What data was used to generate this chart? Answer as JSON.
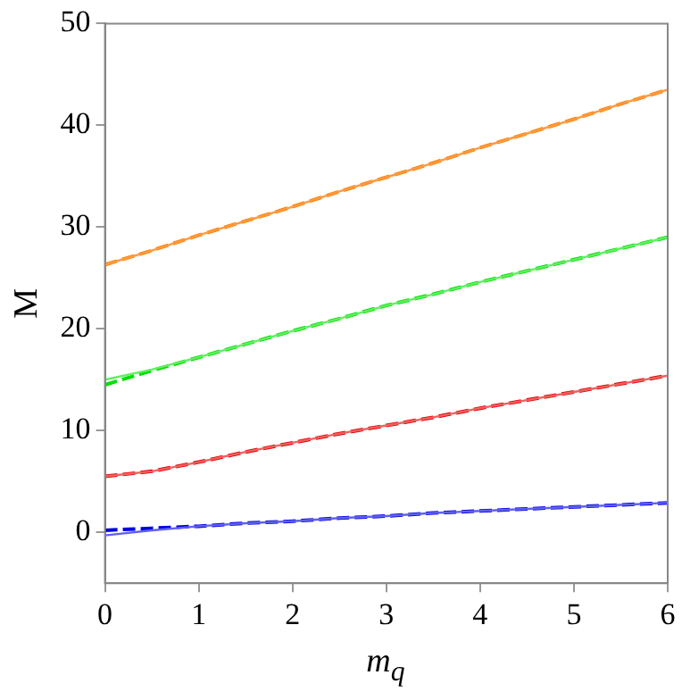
{
  "chart_data": {
    "type": "line",
    "xlabel": "m$_{q}$",
    "ylabel": "M",
    "x": [
      0,
      0.5,
      1,
      1.5,
      2,
      2.5,
      3,
      3.5,
      4,
      4.5,
      5,
      5.5,
      6
    ],
    "xlim": [
      0,
      6
    ],
    "xticks": [
      0,
      1,
      2,
      3,
      4,
      5,
      6
    ],
    "ylim": [
      -5,
      50
    ],
    "yticks": [
      0,
      10,
      20,
      30,
      40,
      50
    ],
    "grid": false,
    "legend": false,
    "marker": "none",
    "series": [
      {
        "color": "#ff9a40",
        "line_style": "solid",
        "values": [
          26.3,
          27.7,
          29.2,
          30.6,
          32.0,
          33.5,
          34.9,
          36.3,
          37.8,
          39.2,
          40.6,
          42.1,
          43.5
        ]
      },
      {
        "color": "#60f060",
        "line_style": "solid",
        "values": [
          15.0,
          16.0,
          17.2,
          18.5,
          19.8,
          21.0,
          22.3,
          23.4,
          24.6,
          25.7,
          26.8,
          27.9,
          29.0
        ]
      },
      {
        "color": "#f06060",
        "line_style": "solid",
        "values": [
          5.5,
          6.0,
          6.9,
          7.9,
          8.8,
          9.7,
          10.5,
          11.3,
          12.2,
          13.0,
          13.8,
          14.6,
          15.4
        ]
      },
      {
        "color": "#6060f0",
        "line_style": "solid",
        "values": [
          -0.3,
          0.2,
          0.6,
          0.9,
          1.1,
          1.4,
          1.6,
          1.9,
          2.1,
          2.3,
          2.5,
          2.7,
          2.9
        ]
      },
      {
        "color": "#ff8000",
        "line_style": "dashed",
        "values": [
          26.3,
          27.7,
          29.2,
          30.6,
          32.0,
          33.5,
          34.9,
          36.3,
          37.8,
          39.2,
          40.6,
          42.1,
          43.5
        ]
      },
      {
        "color": "#00e000",
        "line_style": "dashed",
        "values": [
          14.5,
          15.9,
          17.2,
          18.5,
          19.8,
          21.0,
          22.3,
          23.4,
          24.6,
          25.7,
          26.8,
          27.9,
          29.0
        ]
      },
      {
        "color": "#e00000",
        "line_style": "dashed",
        "values": [
          5.5,
          6.0,
          6.9,
          7.9,
          8.8,
          9.7,
          10.5,
          11.3,
          12.2,
          13.0,
          13.8,
          14.6,
          15.4
        ]
      },
      {
        "color": "#0000e0",
        "line_style": "dashed",
        "values": [
          0.2,
          0.4,
          0.6,
          0.9,
          1.1,
          1.4,
          1.6,
          1.9,
          2.1,
          2.3,
          2.5,
          2.7,
          2.9
        ]
      }
    ]
  }
}
